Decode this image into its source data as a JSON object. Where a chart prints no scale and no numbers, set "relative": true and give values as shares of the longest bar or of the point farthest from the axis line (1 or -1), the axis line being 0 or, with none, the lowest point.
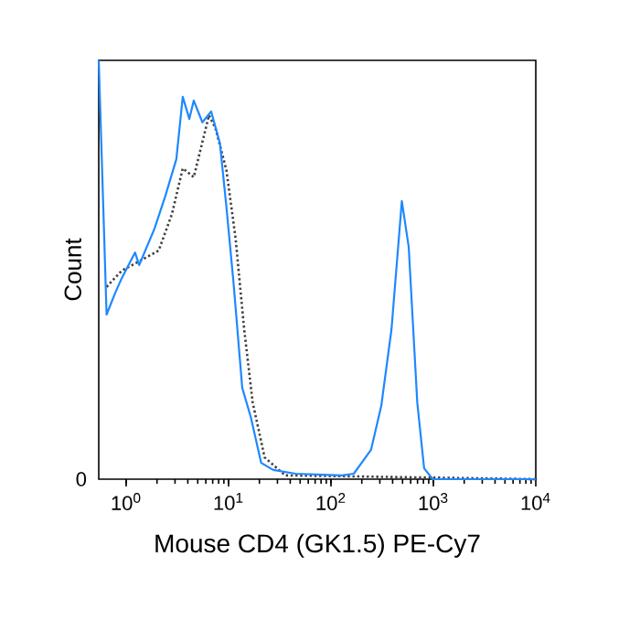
{
  "chart_data": {
    "type": "line",
    "relative": true,
    "xlabel": "Mouse CD4 (GK1.5) PE-Cy7",
    "ylabel": "Count",
    "log": "x",
    "xlim": [
      0.54,
      10000
    ],
    "xticks": [
      {
        "value": 1,
        "label": "10$^{0}$"
      },
      {
        "value": 10,
        "label": "10$^{1}$"
      },
      {
        "value": 100,
        "label": "10$^{2}$"
      },
      {
        "value": 1000,
        "label": "10$^{3}$"
      },
      {
        "value": 10000,
        "label": "10$^{4}$"
      }
    ],
    "tick_labels": "x",
    "annotations": [
      "0"
    ],
    "marker": "none",
    "series": [
      {
        "color": "#404040",
        "line_style": "dotted",
        "x": [
          0.644,
          0.906,
          1.34,
          2.08,
          2.8,
          3.57,
          4.57,
          6.44,
          7.45,
          9.52,
          11.7,
          14.2,
          17.2,
          22.5,
          35.7,
          10000
        ],
        "values": [
          0.459,
          0.498,
          0.52,
          0.546,
          0.633,
          0.742,
          0.721,
          0.869,
          0.838,
          0.738,
          0.576,
          0.358,
          0.183,
          0.052,
          0.009,
          0
        ]
      },
      {
        "color": "#1e88ff",
        "line_style": "solid",
        "x": [
          0.54,
          0.644,
          0.783,
          0.906,
          1.22,
          1.34,
          1.89,
          2.42,
          3.09,
          3.57,
          4.14,
          4.57,
          5.55,
          6.76,
          8.22,
          9.52,
          11.2,
          13.6,
          16.5,
          20.8,
          27.3,
          45.0,
          128,
          167,
          246,
          310,
          390,
          492,
          574,
          696,
          812,
          985,
          10000
        ],
        "values": [
          1.0,
          0.393,
          0.445,
          0.48,
          0.541,
          0.511,
          0.598,
          0.677,
          0.764,
          0.913,
          0.86,
          0.904,
          0.852,
          0.878,
          0.803,
          0.651,
          0.467,
          0.218,
          0.148,
          0.039,
          0.022,
          0.013,
          0.009,
          0.013,
          0.07,
          0.175,
          0.358,
          0.664,
          0.555,
          0.183,
          0.026,
          0,
          0
        ]
      }
    ]
  }
}
